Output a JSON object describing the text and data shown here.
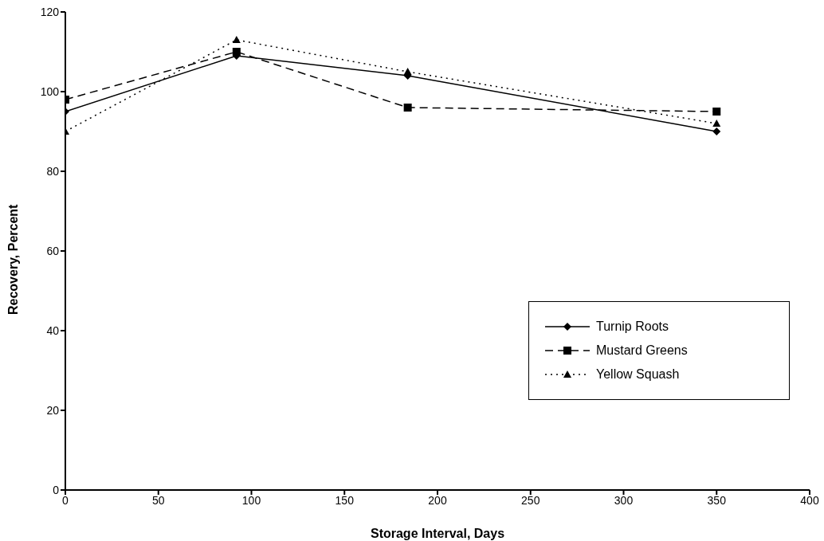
{
  "chart_data": {
    "type": "line",
    "xlabel": "Storage Interval, Days",
    "ylabel": "Recovery, Percent",
    "xlim": [
      0,
      400
    ],
    "xticks": [
      0,
      50,
      100,
      150,
      200,
      250,
      300,
      350,
      400
    ],
    "ylim": [
      0,
      120
    ],
    "yticks": [
      0,
      20,
      40,
      60,
      80,
      100,
      120
    ],
    "grid": false,
    "legend": "bottom right",
    "series": [
      {
        "name": "Turnip Roots",
        "color": "#000000",
        "marker": "diamond",
        "line_style": "solid",
        "x": [
          0,
          92,
          184,
          350
        ],
        "values": [
          95,
          109,
          104,
          90
        ]
      },
      {
        "name": "Mustard Greens",
        "color": "#000000",
        "marker": "square",
        "line_style": "dashed",
        "x": [
          0,
          92,
          184,
          350
        ],
        "values": [
          98,
          110,
          96,
          95
        ]
      },
      {
        "name": "Yellow Squash",
        "color": "#000000",
        "marker": "triangle",
        "line_style": "dotted",
        "x": [
          0,
          92,
          184,
          350
        ],
        "values": [
          90,
          113,
          105,
          92
        ]
      }
    ]
  }
}
